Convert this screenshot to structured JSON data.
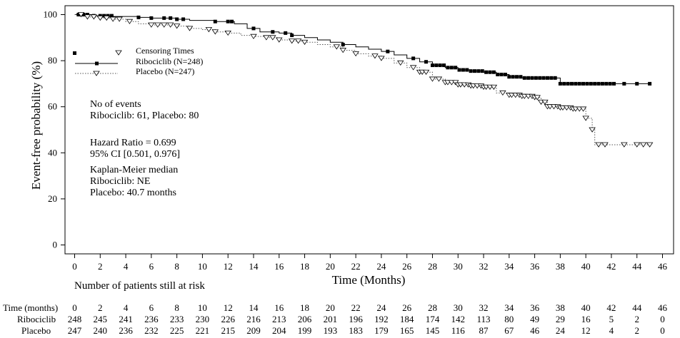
{
  "chart_data": {
    "type": "line",
    "xlabel": "Time (Months)",
    "ylabel": "Event-free probability (%)",
    "xlim": [
      -1,
      47
    ],
    "ylim": [
      -2,
      103
    ],
    "x_ticks": [
      0,
      2,
      4,
      6,
      8,
      10,
      12,
      14,
      16,
      18,
      20,
      22,
      24,
      26,
      28,
      30,
      32,
      34,
      36,
      38,
      40,
      42,
      44,
      46
    ],
    "y_ticks": [
      0,
      20,
      40,
      60,
      80,
      100
    ],
    "grid": false,
    "legend": {
      "title": "Censoring Times",
      "placement": "top-left",
      "entries": [
        "Ribociclib (N=248)",
        "Placebo (N=247)"
      ]
    },
    "annotations": {
      "events_title": "No of events",
      "events_text": "Ribociclib: 61, Placebo: 80",
      "hr_text": "Hazard Ratio = 0.699",
      "ci_text": "95% CI [0.501, 0.976]",
      "km_title": "Kaplan-Meier median",
      "km_ribo": "Ribociclib: NE",
      "km_placebo": "Placebo: 40.7 months"
    },
    "series": [
      {
        "name": "Ribociclib (N=248)",
        "style": "solid",
        "marker": "filled-square",
        "color": "#000000",
        "steps": [
          [
            0,
            100
          ],
          [
            1.5,
            99.5
          ],
          [
            3,
            99.2
          ],
          [
            5,
            98.8
          ],
          [
            6,
            98.5
          ],
          [
            8,
            98
          ],
          [
            9,
            97.5
          ],
          [
            11,
            97
          ],
          [
            12.5,
            96
          ],
          [
            13.5,
            94
          ],
          [
            14.5,
            92.5
          ],
          [
            16,
            92
          ],
          [
            17,
            91
          ],
          [
            18,
            90
          ],
          [
            19,
            89
          ],
          [
            20,
            88
          ],
          [
            21,
            87
          ],
          [
            22,
            86
          ],
          [
            23,
            85
          ],
          [
            24,
            84
          ],
          [
            25,
            82.5
          ],
          [
            26,
            81
          ],
          [
            27,
            79.5
          ],
          [
            28,
            78
          ],
          [
            29,
            77
          ],
          [
            30,
            76
          ],
          [
            31,
            75.5
          ],
          [
            32,
            75
          ],
          [
            33,
            74
          ],
          [
            34,
            73
          ],
          [
            35,
            72.5
          ],
          [
            36,
            72.5
          ],
          [
            38,
            70
          ],
          [
            45,
            70
          ]
        ],
        "censor_times": [
          0.3,
          0.7,
          1,
          1.5,
          2,
          2.3,
          2.6,
          2.9,
          5,
          6,
          7,
          7.5,
          8,
          8.5,
          11,
          12,
          12.3,
          14,
          15.5,
          16.5,
          17,
          21,
          24.5,
          26.5,
          27.5,
          28,
          28.3,
          28.6,
          28.9,
          29.2,
          29.5,
          29.8,
          30.1,
          30.4,
          30.7,
          31,
          31.3,
          31.6,
          31.9,
          32.2,
          32.5,
          32.8,
          33.1,
          33.4,
          33.7,
          34,
          34.3,
          34.6,
          34.9,
          35.2,
          35.5,
          35.8,
          36.1,
          36.4,
          36.7,
          37,
          37.3,
          37.6,
          38,
          38.3,
          38.6,
          38.9,
          39.2,
          39.5,
          39.8,
          40.1,
          40.4,
          40.7,
          41,
          41.3,
          41.6,
          41.9,
          42.2,
          43,
          44,
          45
        ]
      },
      {
        "name": "Placebo (N=247)",
        "style": "dotted",
        "marker": "open-triangle",
        "color": "#555555",
        "steps": [
          [
            0,
            100
          ],
          [
            1,
            99
          ],
          [
            2,
            98.5
          ],
          [
            3,
            98
          ],
          [
            4,
            97
          ],
          [
            5,
            96
          ],
          [
            6,
            95.5
          ],
          [
            8,
            95
          ],
          [
            9,
            94
          ],
          [
            10,
            93.5
          ],
          [
            11,
            92.5
          ],
          [
            12,
            92
          ],
          [
            13,
            91
          ],
          [
            14,
            90.5
          ],
          [
            15,
            90
          ],
          [
            16,
            89
          ],
          [
            17,
            88.5
          ],
          [
            18,
            88
          ],
          [
            19,
            87
          ],
          [
            20,
            86
          ],
          [
            21,
            84.5
          ],
          [
            22,
            83
          ],
          [
            23,
            82
          ],
          [
            24,
            81
          ],
          [
            25,
            79
          ],
          [
            26,
            77
          ],
          [
            27,
            75
          ],
          [
            28,
            72
          ],
          [
            29,
            70.5
          ],
          [
            30,
            69.5
          ],
          [
            31,
            69
          ],
          [
            32,
            68.5
          ],
          [
            33,
            66
          ],
          [
            34,
            65
          ],
          [
            35,
            64.5
          ],
          [
            36,
            64
          ],
          [
            36.5,
            62
          ],
          [
            37,
            60
          ],
          [
            38,
            59.5
          ],
          [
            39,
            59
          ],
          [
            40,
            55
          ],
          [
            40.5,
            50
          ],
          [
            40.7,
            43.5
          ],
          [
            45,
            43.5
          ]
        ],
        "censor_times": [
          0.5,
          1,
          1.5,
          2,
          2.5,
          3,
          3.5,
          4.3,
          6,
          6.5,
          7,
          7.5,
          8,
          9,
          10.5,
          11,
          12,
          14,
          15,
          15.5,
          16,
          17,
          17.5,
          18,
          20.5,
          21,
          22,
          23.5,
          24,
          25.5,
          26.5,
          27,
          27.2,
          27.5,
          28,
          28.5,
          29,
          29.2,
          29.5,
          29.8,
          30,
          30.2,
          30.5,
          30.8,
          31,
          31.2,
          31.5,
          31.8,
          32,
          32.2,
          32.5,
          32.8,
          33.5,
          34,
          34.2,
          34.5,
          34.8,
          35,
          35.2,
          35.5,
          35.8,
          36,
          36.2,
          36.5,
          36.8,
          37,
          37.2,
          37.5,
          37.8,
          38,
          38.2,
          38.5,
          38.8,
          39,
          39.2,
          39.5,
          39.8,
          40,
          40.5,
          41,
          41.5,
          43,
          44,
          44.5,
          45
        ]
      }
    ],
    "risk_table": {
      "title": "Number of patients still at risk",
      "time_label": "Time (months)",
      "times": [
        "0",
        "2",
        "4",
        "6",
        "8",
        "10",
        "12",
        "14",
        "16",
        "18",
        "20",
        "22",
        "24",
        "26",
        "28",
        "30",
        "32",
        "34",
        "36",
        "38",
        "40",
        "42",
        "44",
        "46"
      ],
      "rows": [
        {
          "label": "Ribociclib",
          "values": [
            "248",
            "245",
            "241",
            "236",
            "233",
            "230",
            "226",
            "216",
            "213",
            "206",
            "201",
            "196",
            "192",
            "184",
            "174",
            "142",
            "113",
            "80",
            "49",
            "29",
            "16",
            "5",
            "2",
            "0"
          ]
        },
        {
          "label": "Placebo",
          "values": [
            "247",
            "240",
            "236",
            "232",
            "225",
            "221",
            "215",
            "209",
            "204",
            "199",
            "193",
            "183",
            "179",
            "165",
            "145",
            "116",
            "87",
            "67",
            "46",
            "24",
            "12",
            "4",
            "2",
            "0"
          ]
        }
      ]
    }
  }
}
